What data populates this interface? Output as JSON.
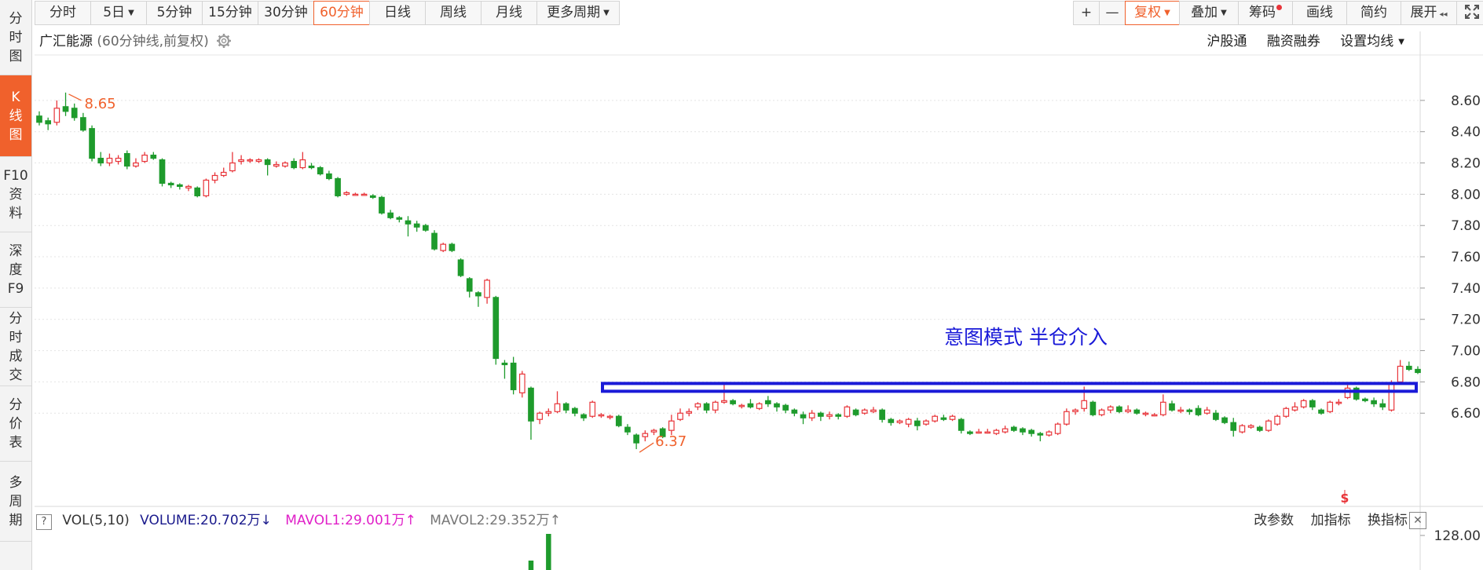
{
  "sidebar": {
    "items": [
      {
        "label": "分\n时\n图",
        "active": false
      },
      {
        "label": "K\n线\n图",
        "active": true
      },
      {
        "label": "F10\n资\n料",
        "active": false
      },
      {
        "label": "深\n度\nF9",
        "active": false
      },
      {
        "label": "分\n时\n成\n交",
        "active": false
      },
      {
        "label": "分\n价\n表",
        "active": false
      },
      {
        "label": "多\n周\n期",
        "active": false
      }
    ]
  },
  "toolbar": {
    "periods": [
      "分时",
      "5日",
      "5分钟",
      "15分钟",
      "30分钟",
      "60分钟",
      "日线",
      "周线",
      "月线",
      "更多周期"
    ],
    "active_period": "60分钟",
    "right_buttons": [
      "+",
      "—",
      "复权",
      "叠加",
      "筹码",
      "画线",
      "简约",
      "展开"
    ]
  },
  "header": {
    "stock_name": "广汇能源",
    "subtitle": "(60分钟线,前复权)",
    "links": [
      "沪股通",
      "融资融券",
      "设置均线"
    ]
  },
  "annotation": {
    "text": "意图模式 半仓介入",
    "color": "#1a1ad8"
  },
  "price_labels": {
    "high": "8.65",
    "low": "6.37"
  },
  "volume_bar": {
    "help": "?",
    "label": "VOL(5,10)",
    "volume": "VOLUME:20.702万",
    "volume_arrow": "↓",
    "mavol1": "MAVOL1:29.001万",
    "mavol1_arrow": "↑",
    "mavol2": "MAVOL2:29.352万",
    "mavol2_arrow": "↑",
    "links": [
      "改参数",
      "加指标",
      "换指标"
    ],
    "close": "✕"
  },
  "colors": {
    "up": "#e8353a",
    "down": "#1e9b2c",
    "accent": "#f0612c",
    "mavol1": "#e020c8",
    "mavol2": "#888888",
    "volume": "#1a1a8c",
    "box": "#1a1ad8"
  },
  "chart_data": {
    "type": "candlestick",
    "y_ticks": [
      "8.60",
      "8.40",
      "8.20",
      "8.00",
      "7.80",
      "7.60",
      "7.40",
      "7.20",
      "7.00",
      "6.80",
      "6.60"
    ],
    "ylim": [
      6.3,
      8.75
    ],
    "volume_tick": "128.00",
    "candles": [
      [
        8.5,
        8.46,
        8.53,
        8.44
      ],
      [
        8.47,
        8.45,
        8.49,
        8.41
      ],
      [
        8.46,
        8.55,
        8.6,
        8.44
      ],
      [
        8.56,
        8.53,
        8.65,
        8.5
      ],
      [
        8.55,
        8.49,
        8.58,
        8.47
      ],
      [
        8.49,
        8.41,
        8.52,
        8.4
      ],
      [
        8.42,
        8.23,
        8.44,
        8.21
      ],
      [
        8.23,
        8.2,
        8.27,
        8.18
      ],
      [
        8.2,
        8.23,
        8.26,
        8.18
      ],
      [
        8.21,
        8.23,
        8.25,
        8.19
      ],
      [
        8.26,
        8.18,
        8.28,
        8.16
      ],
      [
        8.18,
        8.2,
        8.23,
        8.17
      ],
      [
        8.21,
        8.25,
        8.27,
        8.2
      ],
      [
        8.25,
        8.23,
        8.27,
        8.22
      ],
      [
        8.22,
        8.07,
        8.23,
        8.05
      ],
      [
        8.07,
        8.06,
        8.08,
        8.04
      ],
      [
        8.06,
        8.05,
        8.07,
        8.03
      ],
      [
        8.04,
        8.05,
        8.06,
        8.02
      ],
      [
        8.04,
        7.99,
        8.05,
        7.98
      ],
      [
        7.99,
        8.09,
        8.1,
        7.98
      ],
      [
        8.09,
        8.12,
        8.14,
        8.07
      ],
      [
        8.12,
        8.14,
        8.17,
        8.11
      ],
      [
        8.15,
        8.2,
        8.27,
        8.14
      ],
      [
        8.21,
        8.22,
        8.25,
        8.19
      ],
      [
        8.22,
        8.22,
        8.23,
        8.2
      ],
      [
        8.21,
        8.22,
        8.23,
        8.2
      ],
      [
        8.22,
        8.19,
        8.23,
        8.12
      ],
      [
        8.18,
        8.19,
        8.21,
        8.17
      ],
      [
        8.18,
        8.2,
        8.21,
        8.17
      ],
      [
        8.21,
        8.17,
        8.23,
        8.16
      ],
      [
        8.17,
        8.22,
        8.27,
        8.16
      ],
      [
        8.18,
        8.17,
        8.2,
        8.16
      ],
      [
        8.17,
        8.13,
        8.18,
        8.12
      ],
      [
        8.13,
        8.1,
        8.15,
        8.09
      ],
      [
        8.1,
        7.99,
        8.11,
        7.98
      ],
      [
        8.0,
        8.01,
        8.02,
        7.99
      ],
      [
        8.0,
        8.0,
        8.01,
        7.99
      ],
      [
        8.0,
        8.0,
        8.01,
        7.99
      ],
      [
        7.99,
        7.98,
        8.0,
        7.97
      ],
      [
        7.98,
        7.88,
        7.99,
        7.87
      ],
      [
        7.88,
        7.85,
        7.9,
        7.84
      ],
      [
        7.85,
        7.84,
        7.86,
        7.82
      ],
      [
        7.83,
        7.81,
        7.86,
        7.73
      ],
      [
        7.81,
        7.79,
        7.83,
        7.76
      ],
      [
        7.8,
        7.77,
        7.81,
        7.76
      ],
      [
        7.75,
        7.65,
        7.77,
        7.64
      ],
      [
        7.64,
        7.68,
        7.69,
        7.63
      ],
      [
        7.68,
        7.64,
        7.69,
        7.63
      ],
      [
        7.58,
        7.48,
        7.59,
        7.47
      ],
      [
        7.46,
        7.38,
        7.47,
        7.34
      ],
      [
        7.37,
        7.35,
        7.38,
        7.28
      ],
      [
        7.34,
        7.45,
        7.46,
        7.3
      ],
      [
        7.34,
        6.95,
        7.35,
        6.91
      ],
      [
        6.92,
        6.91,
        6.94,
        6.82
      ],
      [
        6.92,
        6.75,
        6.96,
        6.72
      ],
      [
        6.73,
        6.85,
        6.87,
        6.7
      ],
      [
        6.76,
        6.55,
        6.77,
        6.43
      ],
      [
        6.56,
        6.6,
        6.61,
        6.53
      ],
      [
        6.6,
        6.61,
        6.63,
        6.58
      ],
      [
        6.61,
        6.66,
        6.74,
        6.6
      ],
      [
        6.66,
        6.62,
        6.67,
        6.6
      ],
      [
        6.63,
        6.6,
        6.64,
        6.58
      ],
      [
        6.59,
        6.57,
        6.6,
        6.55
      ],
      [
        6.58,
        6.67,
        6.68,
        6.57
      ],
      [
        6.59,
        6.59,
        6.6,
        6.57
      ],
      [
        6.58,
        6.58,
        6.59,
        6.56
      ],
      [
        6.58,
        6.52,
        6.59,
        6.51
      ],
      [
        6.51,
        6.48,
        6.53,
        6.46
      ],
      [
        6.46,
        6.41,
        6.47,
        6.37
      ],
      [
        6.45,
        6.47,
        6.49,
        6.42
      ],
      [
        6.48,
        6.49,
        6.5,
        6.46
      ],
      [
        6.5,
        6.45,
        6.51,
        6.44
      ],
      [
        6.49,
        6.55,
        6.59,
        6.46
      ],
      [
        6.56,
        6.6,
        6.63,
        6.55
      ],
      [
        6.6,
        6.61,
        6.63,
        6.58
      ],
      [
        6.64,
        6.66,
        6.67,
        6.62
      ],
      [
        6.66,
        6.62,
        6.67,
        6.6
      ],
      [
        6.62,
        6.67,
        6.68,
        6.6
      ],
      [
        6.67,
        6.68,
        6.8,
        6.66
      ],
      [
        6.68,
        6.66,
        6.69,
        6.65
      ],
      [
        6.65,
        6.65,
        6.66,
        6.63
      ],
      [
        6.66,
        6.64,
        6.69,
        6.63
      ],
      [
        6.63,
        6.66,
        6.67,
        6.62
      ],
      [
        6.68,
        6.66,
        6.71,
        6.64
      ],
      [
        6.66,
        6.64,
        6.67,
        6.61
      ],
      [
        6.65,
        6.62,
        6.66,
        6.6
      ],
      [
        6.62,
        6.6,
        6.63,
        6.58
      ],
      [
        6.59,
        6.57,
        6.61,
        6.53
      ],
      [
        6.57,
        6.6,
        6.62,
        6.55
      ],
      [
        6.6,
        6.58,
        6.61,
        6.55
      ],
      [
        6.58,
        6.59,
        6.61,
        6.56
      ],
      [
        6.59,
        6.58,
        6.6,
        6.56
      ],
      [
        6.58,
        6.64,
        6.65,
        6.57
      ],
      [
        6.62,
        6.59,
        6.63,
        6.58
      ],
      [
        6.6,
        6.62,
        6.63,
        6.59
      ],
      [
        6.61,
        6.62,
        6.64,
        6.6
      ],
      [
        6.62,
        6.56,
        6.63,
        6.54
      ],
      [
        6.56,
        6.54,
        6.57,
        6.52
      ],
      [
        6.54,
        6.55,
        6.56,
        6.53
      ],
      [
        6.53,
        6.56,
        6.57,
        6.51
      ],
      [
        6.55,
        6.52,
        6.57,
        6.49
      ],
      [
        6.53,
        6.55,
        6.56,
        6.52
      ],
      [
        6.55,
        6.58,
        6.59,
        6.54
      ],
      [
        6.57,
        6.56,
        6.59,
        6.55
      ],
      [
        6.56,
        6.58,
        6.59,
        6.55
      ],
      [
        6.56,
        6.49,
        6.57,
        6.47
      ],
      [
        6.48,
        6.47,
        6.49,
        6.46
      ],
      [
        6.48,
        6.48,
        6.5,
        6.47
      ],
      [
        6.48,
        6.48,
        6.5,
        6.47
      ],
      [
        6.47,
        6.49,
        6.5,
        6.46
      ],
      [
        6.48,
        6.5,
        6.52,
        6.47
      ],
      [
        6.51,
        6.49,
        6.52,
        6.48
      ],
      [
        6.5,
        6.48,
        6.51,
        6.46
      ],
      [
        6.49,
        6.47,
        6.5,
        6.45
      ],
      [
        6.47,
        6.46,
        6.48,
        6.42
      ],
      [
        6.46,
        6.48,
        6.49,
        6.45
      ],
      [
        6.47,
        6.53,
        6.54,
        6.46
      ],
      [
        6.53,
        6.61,
        6.63,
        6.52
      ],
      [
        6.61,
        6.62,
        6.63,
        6.59
      ],
      [
        6.63,
        6.68,
        6.77,
        6.61
      ],
      [
        6.67,
        6.59,
        6.68,
        6.58
      ],
      [
        6.59,
        6.62,
        6.63,
        6.58
      ],
      [
        6.62,
        6.64,
        6.65,
        6.6
      ],
      [
        6.64,
        6.61,
        6.65,
        6.6
      ],
      [
        6.61,
        6.62,
        6.65,
        6.6
      ],
      [
        6.62,
        6.6,
        6.63,
        6.59
      ],
      [
        6.6,
        6.6,
        6.61,
        6.58
      ],
      [
        6.59,
        6.59,
        6.6,
        6.58
      ],
      [
        6.59,
        6.67,
        6.72,
        6.58
      ],
      [
        6.66,
        6.62,
        6.68,
        6.61
      ],
      [
        6.62,
        6.62,
        6.64,
        6.6
      ],
      [
        6.62,
        6.61,
        6.63,
        6.59
      ],
      [
        6.63,
        6.59,
        6.65,
        6.58
      ],
      [
        6.6,
        6.62,
        6.64,
        6.59
      ],
      [
        6.6,
        6.56,
        6.62,
        6.55
      ],
      [
        6.57,
        6.54,
        6.58,
        6.53
      ],
      [
        6.54,
        6.49,
        6.57,
        6.45
      ],
      [
        6.48,
        6.52,
        6.53,
        6.47
      ],
      [
        6.51,
        6.52,
        6.53,
        6.5
      ],
      [
        6.51,
        6.49,
        6.52,
        6.48
      ],
      [
        6.49,
        6.55,
        6.56,
        6.48
      ],
      [
        6.53,
        6.58,
        6.59,
        6.52
      ],
      [
        6.58,
        6.63,
        6.64,
        6.57
      ],
      [
        6.62,
        6.64,
        6.67,
        6.61
      ],
      [
        6.64,
        6.68,
        6.69,
        6.63
      ],
      [
        6.68,
        6.64,
        6.69,
        6.62
      ],
      [
        6.62,
        6.6,
        6.63,
        6.59
      ],
      [
        6.61,
        6.67,
        6.68,
        6.6
      ],
      [
        6.67,
        6.67,
        6.69,
        6.65
      ],
      [
        6.7,
        6.76,
        6.78,
        6.69
      ],
      [
        6.76,
        6.69,
        6.77,
        6.68
      ],
      [
        6.69,
        6.68,
        6.7,
        6.67
      ],
      [
        6.68,
        6.66,
        6.7,
        6.64
      ],
      [
        6.66,
        6.64,
        6.69,
        6.62
      ],
      [
        6.62,
        6.79,
        6.81,
        6.61
      ],
      [
        6.8,
        6.9,
        6.94,
        6.79
      ],
      [
        6.9,
        6.88,
        6.93,
        6.87
      ],
      [
        6.88,
        6.86,
        6.9,
        6.85
      ]
    ]
  }
}
